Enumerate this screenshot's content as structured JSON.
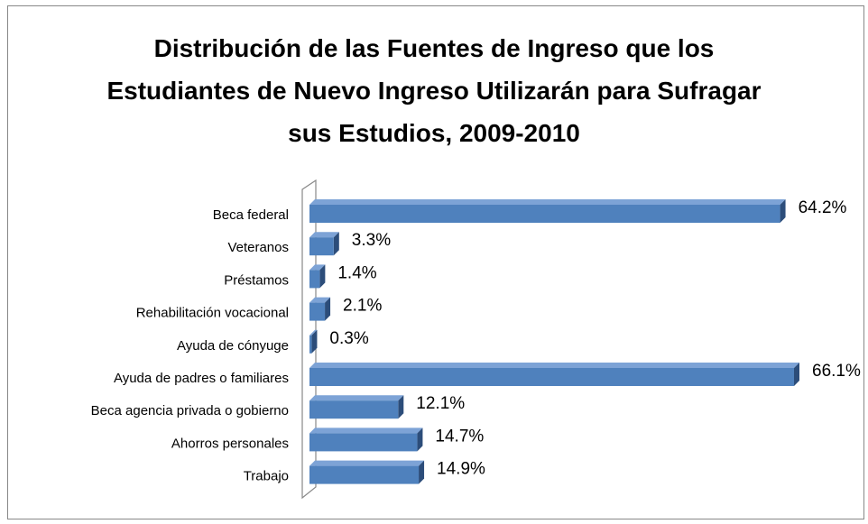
{
  "chart_data": {
    "type": "bar",
    "orientation": "horizontal",
    "title": "Distribución de las Fuentes de Ingreso que los Estudiantes de Nuevo Ingreso Utilizarán para Sufragar sus Estudios, 2009-2010",
    "categories": [
      "Beca federal",
      "Veteranos",
      "Préstamos",
      "Rehabilitación vocacional",
      "Ayuda de cónyuge",
      "Ayuda de padres o familiares",
      "Beca agencia privada o gobierno",
      "Ahorros personales",
      "Trabajo"
    ],
    "values": [
      64.2,
      3.3,
      1.4,
      2.1,
      0.3,
      66.1,
      12.1,
      14.7,
      14.9
    ],
    "value_labels": [
      "64.2%",
      "3.3%",
      "1.4%",
      "2.1%",
      "0.3%",
      "66.1%",
      "12.1%",
      "14.7%",
      "14.9%"
    ],
    "color": "#4f81bd"
  }
}
